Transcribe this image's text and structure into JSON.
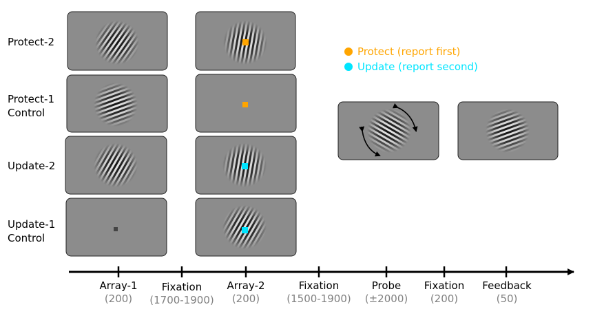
{
  "conditions": [
    {
      "label": "Protect-2"
    },
    {
      "label": "Protect-1 Control"
    },
    {
      "label": "Update-2"
    },
    {
      "label": "Update-1 Control"
    }
  ],
  "legend": [
    {
      "text": "Protect (report first)",
      "color": "#FFA500"
    },
    {
      "text": "Update (report second)",
      "color": "#00E5FF"
    }
  ],
  "timeline": [
    {
      "phase": "Array-1",
      "duration": "(200)"
    },
    {
      "phase": "Fixation",
      "duration": "(1700-1900)"
    },
    {
      "phase": "Array-2",
      "duration": "(200)"
    },
    {
      "phase": "Fixation",
      "duration": "(1500-1900)"
    },
    {
      "phase": "Probe",
      "duration": "(±2000)"
    },
    {
      "phase": "Fixation",
      "duration": "(200)"
    },
    {
      "phase": "Feedback",
      "duration": "(50)"
    }
  ],
  "colors": {
    "panel": "#8c8c8c",
    "protect": "#FFA500",
    "update": "#00E5FF",
    "duration_text": "#808080"
  }
}
